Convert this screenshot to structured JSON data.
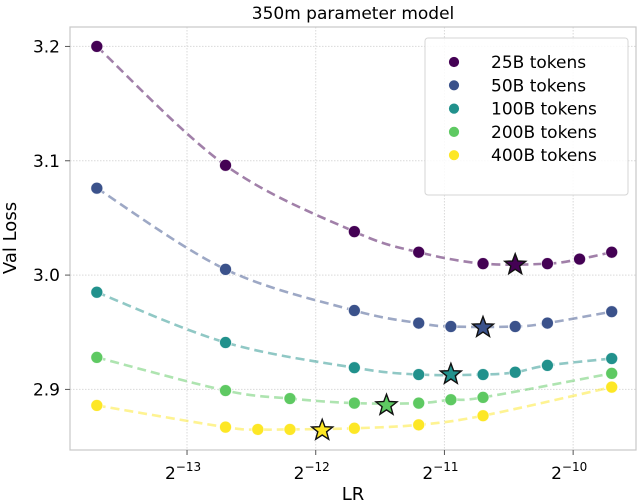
{
  "chart_data": {
    "type": "line",
    "title": "350m parameter model",
    "xlabel": "LR",
    "ylabel": "Val Loss",
    "xscale": "log2",
    "xlim": [
      6.5e-05,
      0.00137
    ],
    "ylim": [
      2.847,
      3.217
    ],
    "grid": true,
    "legend_position": "top-right",
    "x_ticks": [
      {
        "value": 0.0001220703125,
        "base": "2",
        "exp": "−13"
      },
      {
        "value": 0.000244140625,
        "base": "2",
        "exp": "−12"
      },
      {
        "value": 0.00048828125,
        "base": "2",
        "exp": "−11"
      },
      {
        "value": 0.0009765625,
        "base": "2",
        "exp": "−10"
      }
    ],
    "y_ticks": [
      {
        "value": 2.9,
        "label": "2.9"
      },
      {
        "value": 3.0,
        "label": "3.0"
      },
      {
        "value": 3.1,
        "label": "3.1"
      },
      {
        "value": 3.2,
        "label": "3.2"
      }
    ],
    "series": [
      {
        "name": "25B tokens",
        "color": "#440154",
        "points": [
          [
            7.51e-05,
            3.2
          ],
          [
            0.0001502,
            3.096
          ],
          [
            0.0003006,
            3.038
          ],
          [
            0.0004251,
            3.02
          ],
          [
            0.0006011,
            3.01
          ],
          [
            0.0008502,
            3.01
          ],
          [
            0.001011,
            3.014
          ],
          [
            0.001202,
            3.02
          ]
        ],
        "optimum": [
          0.0007149,
          3.01
        ]
      },
      {
        "name": "50B tokens",
        "color": "#3b528b",
        "points": [
          [
            7.51e-05,
            3.076
          ],
          [
            0.0001502,
            3.005
          ],
          [
            0.0003006,
            2.969
          ],
          [
            0.0004251,
            2.958
          ],
          [
            0.0005055,
            2.955
          ],
          [
            0.0007149,
            2.955
          ],
          [
            0.0008502,
            2.958
          ],
          [
            0.001202,
            2.968
          ]
        ],
        "optimum": [
          0.0006011,
          2.955
        ]
      },
      {
        "name": "100B tokens",
        "color": "#21918c",
        "points": [
          [
            7.51e-05,
            2.985
          ],
          [
            0.0001502,
            2.941
          ],
          [
            0.0003006,
            2.919
          ],
          [
            0.0004251,
            2.913
          ],
          [
            0.0006011,
            2.913
          ],
          [
            0.0007149,
            2.915
          ],
          [
            0.0008502,
            2.921
          ],
          [
            0.001202,
            2.927
          ]
        ],
        "optimum": [
          0.0005055,
          2.914
        ]
      },
      {
        "name": "200B tokens",
        "color": "#5ec962",
        "points": [
          [
            7.51e-05,
            2.928
          ],
          [
            0.0001502,
            2.899
          ],
          [
            0.0002125,
            2.892
          ],
          [
            0.0003006,
            2.888
          ],
          [
            0.0004251,
            2.888
          ],
          [
            0.0005055,
            2.891
          ],
          [
            0.0006011,
            2.893
          ],
          [
            0.001202,
            2.914
          ]
        ],
        "optimum": [
          0.0003574,
          2.887
        ]
      },
      {
        "name": "400B tokens",
        "color": "#fde725",
        "points": [
          [
            7.51e-05,
            2.886
          ],
          [
            0.0001502,
            2.867
          ],
          [
            0.0001787,
            2.865
          ],
          [
            0.0002125,
            2.865
          ],
          [
            0.0003006,
            2.866
          ],
          [
            0.0004251,
            2.869
          ],
          [
            0.0006011,
            2.877
          ],
          [
            0.001202,
            2.902
          ]
        ],
        "optimum": [
          0.0002528,
          2.865
        ]
      }
    ]
  }
}
